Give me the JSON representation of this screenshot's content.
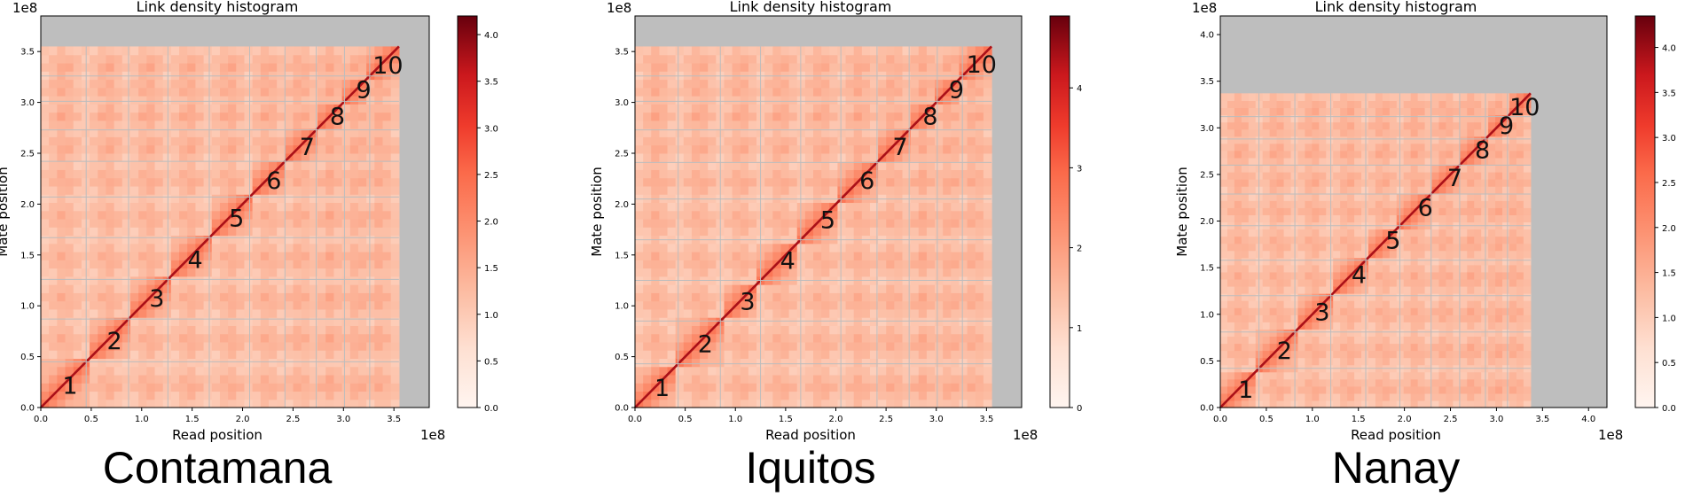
{
  "colors": {
    "missing": "#bebebe",
    "grid": "#bdbdbd",
    "cmap_low": "#fff5f0",
    "cmap_mid": "#fb6a4a",
    "cmap_high": "#67000d"
  },
  "chart_data": [
    {
      "type": "heatmap",
      "title": "Link density histogram",
      "panel_label": "Contamana",
      "xlabel": "Read position",
      "ylabel": "Mate position",
      "offset_label": "1e8",
      "xlim": [
        0,
        3.85
      ],
      "ylim": [
        0,
        3.85
      ],
      "data_extent": 3.55,
      "xticks": [
        0.0,
        0.5,
        1.0,
        1.5,
        2.0,
        2.5,
        3.0,
        3.5
      ],
      "yticks": [
        0.0,
        0.5,
        1.0,
        1.5,
        2.0,
        2.5,
        3.0,
        3.5
      ],
      "xtick_labels": [
        "0.0",
        "0.5",
        "1.0",
        "1.5",
        "2.0",
        "2.5",
        "3.0",
        "3.5"
      ],
      "ytick_labels": [
        "0.0",
        "0.5",
        "1.0",
        "1.5",
        "2.0",
        "2.5",
        "3.0",
        "3.5"
      ],
      "boundaries": [
        0.45,
        0.87,
        1.26,
        1.67,
        2.07,
        2.42,
        2.73,
        3.01,
        3.26,
        3.47
      ],
      "chromosome_labels": [
        "1",
        "2",
        "3",
        "4",
        "5",
        "6",
        "7",
        "8",
        "9",
        "10"
      ],
      "label_positions": [
        0.22,
        0.66,
        1.08,
        1.46,
        1.87,
        2.24,
        2.57,
        2.87,
        3.13,
        3.37
      ],
      "colorbar": {
        "min": 0,
        "max": 4.2,
        "ticks": [
          0.0,
          0.5,
          1.0,
          1.5,
          2.0,
          2.5,
          3.0,
          3.5,
          4.0
        ],
        "tick_labels": [
          "0.0",
          "0.5",
          "1.0",
          "1.5",
          "2.0",
          "2.5",
          "3.0",
          "3.5",
          "4.0"
        ]
      }
    },
    {
      "type": "heatmap",
      "title": "Link density histogram",
      "panel_label": "Iquitos",
      "xlabel": "Read position",
      "ylabel": "Mate position",
      "offset_label": "1e8",
      "xlim": [
        0,
        3.85
      ],
      "ylim": [
        0,
        3.85
      ],
      "data_extent": 3.55,
      "xticks": [
        0.0,
        0.5,
        1.0,
        1.5,
        2.0,
        2.5,
        3.0,
        3.5
      ],
      "yticks": [
        0.0,
        0.5,
        1.0,
        1.5,
        2.0,
        2.5,
        3.0,
        3.5
      ],
      "xtick_labels": [
        "0.0",
        "0.5",
        "1.0",
        "1.5",
        "2.0",
        "2.5",
        "3.0",
        "3.5"
      ],
      "ytick_labels": [
        "0.0",
        "0.5",
        "1.0",
        "1.5",
        "2.0",
        "2.5",
        "3.0",
        "3.5"
      ],
      "boundaries": [
        0.43,
        0.85,
        1.25,
        1.65,
        2.05,
        2.41,
        2.73,
        3.01,
        3.26,
        3.5
      ],
      "chromosome_labels": [
        "1",
        "2",
        "3",
        "4",
        "5",
        "6",
        "7",
        "8",
        "9",
        "10"
      ],
      "label_positions": [
        0.2,
        0.63,
        1.05,
        1.45,
        1.85,
        2.24,
        2.57,
        2.87,
        3.13,
        3.38
      ],
      "colorbar": {
        "min": 0,
        "max": 4.9,
        "ticks": [
          0,
          1,
          2,
          3,
          4
        ],
        "tick_labels": [
          "0",
          "1",
          "2",
          "3",
          "4"
        ]
      }
    },
    {
      "type": "heatmap",
      "title": "Link density histogram",
      "panel_label": "Nanay",
      "xlabel": "Read position",
      "ylabel": "Mate position",
      "offset_label": "1e8",
      "xlim": [
        0,
        4.2
      ],
      "ylim": [
        0,
        4.2
      ],
      "data_extent": 3.37,
      "xticks": [
        0.0,
        0.5,
        1.0,
        1.5,
        2.0,
        2.5,
        3.0,
        3.5,
        4.0
      ],
      "yticks": [
        0.0,
        0.5,
        1.0,
        1.5,
        2.0,
        2.5,
        3.0,
        3.5,
        4.0
      ],
      "xtick_labels": [
        "0.0",
        "0.5",
        "1.0",
        "1.5",
        "2.0",
        "2.5",
        "3.0",
        "3.5",
        "4.0"
      ],
      "ytick_labels": [
        "0.0",
        "0.5",
        "1.0",
        "1.5",
        "2.0",
        "2.5",
        "3.0",
        "3.5",
        "4.0"
      ],
      "boundaries": [
        0.42,
        0.81,
        1.2,
        1.58,
        1.95,
        2.29,
        2.6,
        2.88,
        3.12,
        3.3
      ],
      "chromosome_labels": [
        "1",
        "2",
        "3",
        "4",
        "5",
        "6",
        "7",
        "8",
        "9",
        "10"
      ],
      "label_positions": [
        0.2,
        0.62,
        1.03,
        1.43,
        1.8,
        2.15,
        2.47,
        2.77,
        3.03,
        3.23
      ],
      "colorbar": {
        "min": 0,
        "max": 4.35,
        "ticks": [
          0.0,
          0.5,
          1.0,
          1.5,
          2.0,
          2.5,
          3.0,
          3.5,
          4.0
        ],
        "tick_labels": [
          "0.0",
          "0.5",
          "1.0",
          "1.5",
          "2.0",
          "2.5",
          "3.0",
          "3.5",
          "4.0"
        ]
      }
    }
  ]
}
